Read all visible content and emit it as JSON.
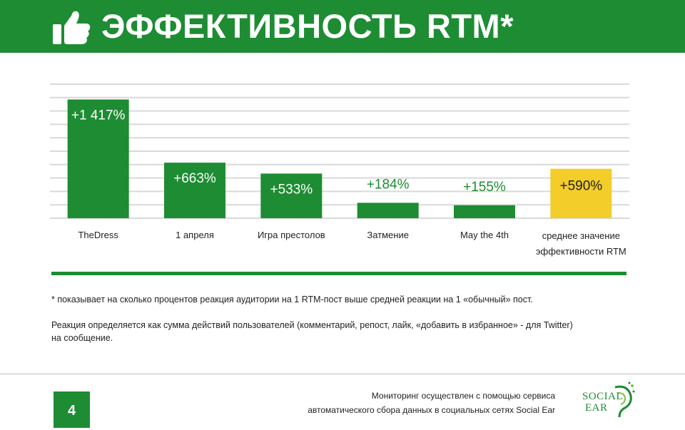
{
  "header": {
    "title": "ЭФФЕКТИВНОСТЬ RTM*"
  },
  "chart_data": {
    "type": "bar",
    "categories": [
      "TheDress",
      "1 апреля",
      "Игра престолов",
      "Затмение",
      "May the 4th",
      "среднее значение эффективности RTM"
    ],
    "category_lines": [
      [
        "TheDress"
      ],
      [
        "1 апреля"
      ],
      [
        "Игра престолов"
      ],
      [
        "Затмение"
      ],
      [
        "May the 4th"
      ],
      [
        "среднее значение",
        "эффективности RTM"
      ]
    ],
    "values": [
      1417,
      663,
      533,
      184,
      155,
      590
    ],
    "data_labels": [
      "+1 417%",
      "+663%",
      "+533%",
      "+184%",
      "+155%",
      "+590%"
    ],
    "colors": [
      "#1e8c33",
      "#1e8c33",
      "#1e8c33",
      "#1e8c33",
      "#1e8c33",
      "#f3cd2a"
    ],
    "ylim": [
      0,
      1600
    ],
    "grid": true,
    "legend": "none"
  },
  "notes": {
    "line1": "* показывает на сколько процентов реакция аудитории на 1 RTM-пост выше средней реакции на 1 «обычный» пост.",
    "line2a": "Реакция определяется как сумма действий пользователей (комментарий, репост, лайк, «добавить в избранное» - для Twitter)",
    "line2b": "на сообщение."
  },
  "footer": {
    "page_number": "4",
    "text_line1": "Мониторинг осуществлен с помощью сервиса",
    "text_line2": "автоматического сбора данных в социальных сетях Social Ear",
    "logo_line1": "SOCIAL",
    "logo_line2": "EAR"
  },
  "icons": {
    "header_icon": "thumbs-up-icon",
    "logo_icon": "ear-logo-icon"
  },
  "colors": {
    "accent": "#1e8c33",
    "highlight": "#f3cd2a"
  }
}
